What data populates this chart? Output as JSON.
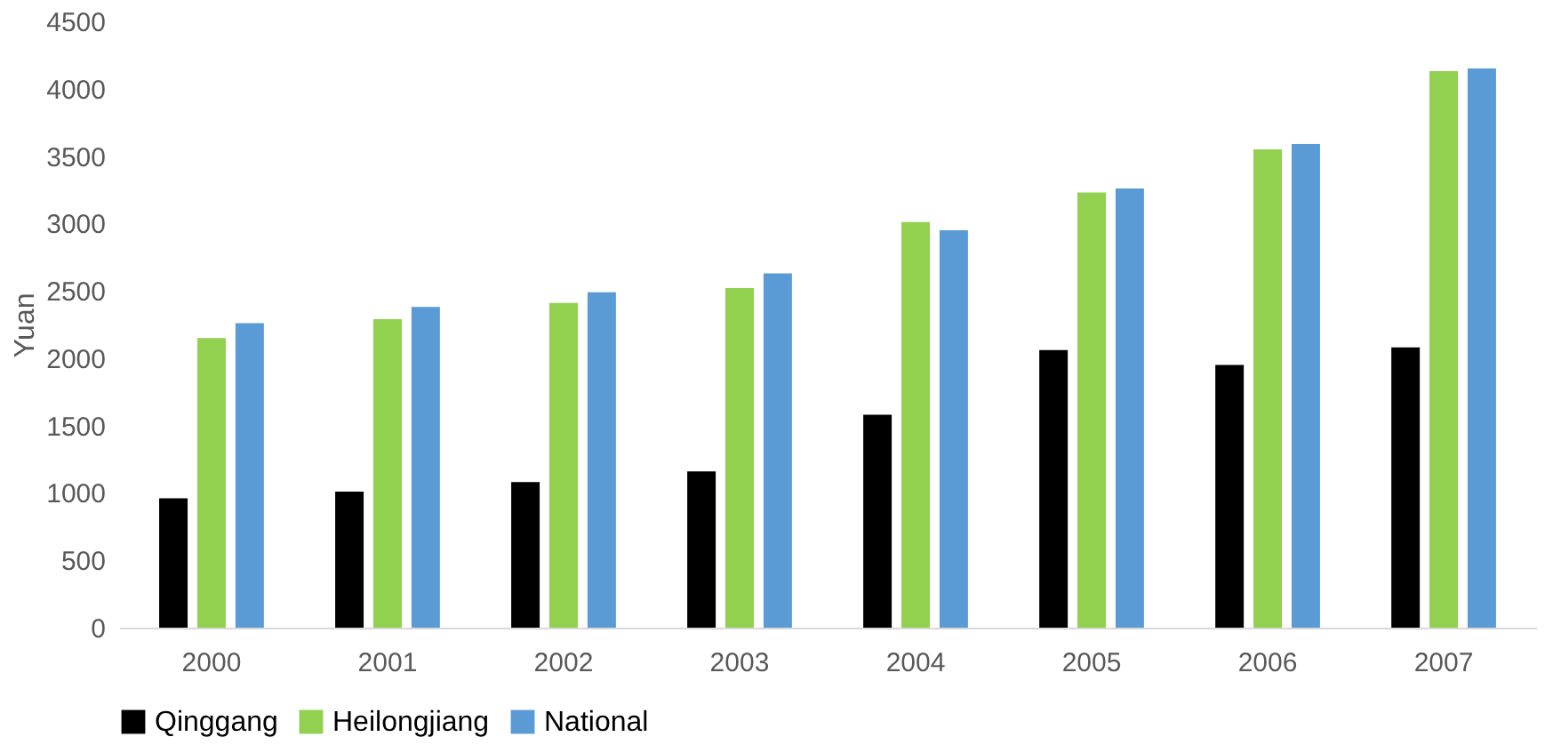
{
  "chart_data": {
    "type": "bar",
    "ylabel": "Yuan",
    "categories": [
      "2000",
      "2001",
      "2002",
      "2003",
      "2004",
      "2005",
      "2006",
      "2007"
    ],
    "series": [
      {
        "name": "Qinggang",
        "color": "#000000",
        "values": [
          960,
          1010,
          1080,
          1160,
          1580,
          2060,
          1950,
          2080
        ]
      },
      {
        "name": "Heilongjiang",
        "color": "#92d050",
        "values": [
          2150,
          2290,
          2410,
          2520,
          3010,
          3230,
          3550,
          4130
        ]
      },
      {
        "name": "National",
        "color": "#5b9bd5",
        "values": [
          2260,
          2380,
          2490,
          2630,
          2950,
          3260,
          3590,
          4150
        ]
      }
    ],
    "ylim": [
      0,
      4500
    ],
    "yticks": [
      0,
      500,
      1000,
      1500,
      2000,
      2500,
      3000,
      3500,
      4000,
      4500
    ],
    "grid": false,
    "legend": "bottom"
  }
}
